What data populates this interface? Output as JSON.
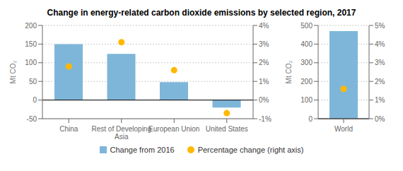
{
  "chart_data": [
    {
      "type": "bar",
      "title": "Change in energy-related carbon dioxide emissions by selected region, 2017",
      "categories": [
        "China",
        "Rest of Developing\nAsia",
        "European Union",
        "United States"
      ],
      "series": [
        {
          "name": "Change from 2016",
          "type": "bar",
          "color": "#7EB6D9",
          "values": [
            150,
            124,
            48,
            -20
          ]
        },
        {
          "name": "Percentage change (right axis)",
          "type": "scatter",
          "axis": "y2",
          "color": "#FFB900",
          "values": [
            1.8,
            3.1,
            1.6,
            -0.7
          ]
        }
      ],
      "ylim": [
        -50,
        200
      ],
      "yticks": [
        -50,
        0,
        50,
        100,
        150,
        200
      ],
      "y2lim": [
        -1,
        4
      ],
      "y2ticks": [
        {
          "value": -1,
          "label": "-1%"
        },
        {
          "value": 0,
          "label": "0%"
        },
        {
          "value": 1,
          "label": "1%"
        },
        {
          "value": 2,
          "label": "2%"
        },
        {
          "value": 3,
          "label": "3%"
        },
        {
          "value": 4,
          "label": "4%"
        }
      ],
      "y_label": "Mt CO₂",
      "grid": true
    },
    {
      "type": "bar",
      "categories": [
        "World"
      ],
      "series": [
        {
          "name": "Change from 2016",
          "type": "bar",
          "color": "#7EB6D9",
          "values": [
            470
          ]
        },
        {
          "name": "Percentage change (right axis)",
          "type": "scatter",
          "axis": "y2",
          "color": "#FFB900",
          "values": [
            1.6
          ]
        }
      ],
      "ylim": [
        0,
        500
      ],
      "yticks": [
        0,
        100,
        200,
        300,
        400,
        500
      ],
      "y2lim": [
        0,
        5
      ],
      "y2ticks": [
        {
          "value": 0,
          "label": "0%"
        },
        {
          "value": 1,
          "label": "1%"
        },
        {
          "value": 2,
          "label": "2%"
        },
        {
          "value": 3,
          "label": "3%"
        },
        {
          "value": 4,
          "label": "4%"
        },
        {
          "value": 5,
          "label": "5%"
        }
      ],
      "y_label": "Mt CO₂",
      "grid": true
    }
  ]
}
